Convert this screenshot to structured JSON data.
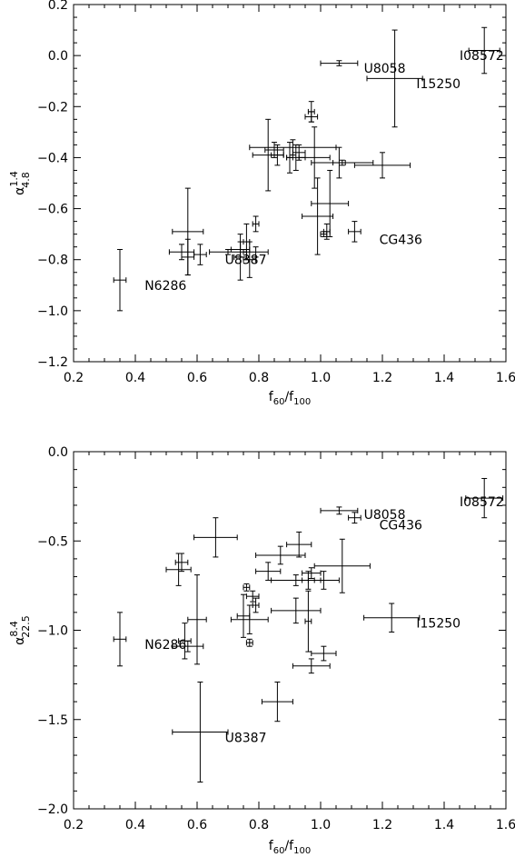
{
  "chart_data": [
    {
      "type": "scatter",
      "title": "",
      "xlabel": {
        "base": "f",
        "sub1": "60",
        "sep": "/f",
        "sub2": "100"
      },
      "ylabel": {
        "base": "α",
        "sup": "1.4",
        "sub": "4.8"
      },
      "xlim": [
        0.2,
        1.6
      ],
      "ylim": [
        -1.2,
        0.2
      ],
      "xticks": [
        "0.2",
        "0.4",
        "0.6",
        "0.8",
        "1.0",
        "1.2",
        "1.4",
        "1.6"
      ],
      "yticks": [
        "−1.2",
        "−1.0",
        "−0.8",
        "−0.6",
        "−0.4",
        "−0.2",
        "0.0",
        "0.2"
      ],
      "grid": false,
      "points": [
        {
          "x": 1.53,
          "y": 0.02,
          "xerr": 0.05,
          "yerr": 0.09
        },
        {
          "x": 1.06,
          "y": -0.03,
          "xerr": 0.06,
          "yerr": 0.01
        },
        {
          "x": 1.24,
          "y": -0.09,
          "xerr": 0.09,
          "yerr": 0.19
        },
        {
          "x": 0.97,
          "y": -0.24,
          "xerr": 0.02,
          "yerr": 0.02
        },
        {
          "x": 0.97,
          "y": -0.22,
          "xerr": 0.01,
          "yerr": 0.04
        },
        {
          "x": 0.91,
          "y": -0.36,
          "xerr": 0.14,
          "yerr": 0.03
        },
        {
          "x": 0.85,
          "y": -0.37,
          "xerr": 0.03,
          "yerr": 0.03
        },
        {
          "x": 0.83,
          "y": -0.39,
          "xerr": 0.05,
          "yerr": 0.14
        },
        {
          "x": 0.86,
          "y": -0.39,
          "xerr": 0.02,
          "yerr": 0.04
        },
        {
          "x": 0.92,
          "y": -0.4,
          "xerr": 0.03,
          "yerr": 0.05
        },
        {
          "x": 0.98,
          "y": -0.4,
          "xerr": 0.05,
          "yerr": 0.12
        },
        {
          "x": 1.06,
          "y": -0.42,
          "xerr": 0.02,
          "yerr": 0.06
        },
        {
          "x": 1.07,
          "y": -0.42,
          "xerr": 0.1,
          "yerr": 0.01
        },
        {
          "x": 1.2,
          "y": -0.43,
          "xerr": 0.09,
          "yerr": 0.05
        },
        {
          "x": 0.9,
          "y": -0.4,
          "xerr": 0.01,
          "yerr": 0.06
        },
        {
          "x": 0.93,
          "y": -0.38,
          "xerr": 0.02,
          "yerr": 0.03
        },
        {
          "x": 1.03,
          "y": -0.58,
          "xerr": 0.06,
          "yerr": 0.13
        },
        {
          "x": 0.99,
          "y": -0.63,
          "xerr": 0.05,
          "yerr": 0.15
        },
        {
          "x": 1.11,
          "y": -0.69,
          "xerr": 0.02,
          "yerr": 0.04
        },
        {
          "x": 1.02,
          "y": -0.69,
          "xerr": 0.01,
          "yerr": 0.03
        },
        {
          "x": 1.01,
          "y": -0.7,
          "xerr": 0.01,
          "yerr": 0.01
        },
        {
          "x": 0.57,
          "y": -0.69,
          "xerr": 0.05,
          "yerr": 0.17
        },
        {
          "x": 0.79,
          "y": -0.66,
          "xerr": 0.01,
          "yerr": 0.03
        },
        {
          "x": 0.76,
          "y": -0.73,
          "xerr": 0.01,
          "yerr": 0.07
        },
        {
          "x": 0.74,
          "y": -0.76,
          "xerr": 0.03,
          "yerr": 0.03
        },
        {
          "x": 0.79,
          "y": -0.77,
          "xerr": 0.04,
          "yerr": 0.02
        },
        {
          "x": 0.7,
          "y": -0.77,
          "xerr": 0.06,
          "yerr": 0.01
        },
        {
          "x": 0.55,
          "y": -0.77,
          "xerr": 0.04,
          "yerr": 0.03
        },
        {
          "x": 0.61,
          "y": -0.78,
          "xerr": 0.02,
          "yerr": 0.04
        },
        {
          "x": 0.57,
          "y": -0.79,
          "xerr": 0.02,
          "yerr": 0.07
        },
        {
          "x": 0.74,
          "y": -0.79,
          "xerr": 0.02,
          "yerr": 0.09
        },
        {
          "x": 0.77,
          "y": -0.8,
          "xerr": 0.02,
          "yerr": 0.07
        },
        {
          "x": 0.35,
          "y": -0.88,
          "xerr": 0.02,
          "yerr": 0.12
        }
      ],
      "annotations": [
        {
          "text": "I08572",
          "x": 1.45,
          "y": 0.0
        },
        {
          "text": "U8058",
          "x": 1.14,
          "y": -0.05
        },
        {
          "text": "I15250",
          "x": 1.31,
          "y": -0.11
        },
        {
          "text": "CG436",
          "x": 1.19,
          "y": -0.72
        },
        {
          "text": "U8387",
          "x": 0.69,
          "y": -0.8
        },
        {
          "text": "N6286",
          "x": 0.43,
          "y": -0.9
        }
      ]
    },
    {
      "type": "scatter",
      "title": "",
      "xlabel": {
        "base": "f",
        "sub1": "60",
        "sep": "/f",
        "sub2": "100"
      },
      "ylabel": {
        "base": "α",
        "sup": "8.4",
        "sub": "22.5"
      },
      "xlim": [
        0.2,
        1.6
      ],
      "ylim": [
        -2.0,
        0.0
      ],
      "xticks": [
        "0.2",
        "0.4",
        "0.6",
        "0.8",
        "1.0",
        "1.2",
        "1.4",
        "1.6"
      ],
      "yticks": [
        "−2.0",
        "−1.5",
        "−1.0",
        "−0.5",
        "0.0"
      ],
      "grid": false,
      "points": [
        {
          "x": 1.53,
          "y": -0.26,
          "xerr": 0.06,
          "yerr": 0.11
        },
        {
          "x": 1.06,
          "y": -0.33,
          "xerr": 0.06,
          "yerr": 0.02
        },
        {
          "x": 1.11,
          "y": -0.37,
          "xerr": 0.02,
          "yerr": 0.03
        },
        {
          "x": 0.66,
          "y": -0.48,
          "xerr": 0.07,
          "yerr": 0.11
        },
        {
          "x": 0.93,
          "y": -0.52,
          "xerr": 0.04,
          "yerr": 0.07
        },
        {
          "x": 0.87,
          "y": -0.58,
          "xerr": 0.08,
          "yerr": 0.05
        },
        {
          "x": 0.55,
          "y": -0.62,
          "xerr": 0.02,
          "yerr": 0.05
        },
        {
          "x": 1.07,
          "y": -0.64,
          "xerr": 0.09,
          "yerr": 0.15
        },
        {
          "x": 0.54,
          "y": -0.66,
          "xerr": 0.04,
          "yerr": 0.09
        },
        {
          "x": 0.83,
          "y": -0.67,
          "xerr": 0.04,
          "yerr": 0.05
        },
        {
          "x": 0.97,
          "y": -0.68,
          "xerr": 0.03,
          "yerr": 0.03
        },
        {
          "x": 0.96,
          "y": -0.72,
          "xerr": 0.02,
          "yerr": 0.05
        },
        {
          "x": 0.92,
          "y": -0.72,
          "xerr": 0.08,
          "yerr": 0.03
        },
        {
          "x": 1.01,
          "y": -0.72,
          "xerr": 0.05,
          "yerr": 0.05
        },
        {
          "x": 0.76,
          "y": -0.76,
          "xerr": 0.01,
          "yerr": 0.02
        },
        {
          "x": 0.78,
          "y": -0.81,
          "xerr": 0.02,
          "yerr": 0.03
        },
        {
          "x": 0.79,
          "y": -0.86,
          "xerr": 0.01,
          "yerr": 0.04
        },
        {
          "x": 0.92,
          "y": -0.89,
          "xerr": 0.08,
          "yerr": 0.07
        },
        {
          "x": 0.75,
          "y": -0.92,
          "xerr": 0.02,
          "yerr": 0.12
        },
        {
          "x": 0.6,
          "y": -0.94,
          "xerr": 0.03,
          "yerr": 0.25
        },
        {
          "x": 0.77,
          "y": -0.94,
          "xerr": 0.06,
          "yerr": 0.08
        },
        {
          "x": 0.96,
          "y": -0.95,
          "xerr": 0.01,
          "yerr": 0.17
        },
        {
          "x": 1.23,
          "y": -0.93,
          "xerr": 0.09,
          "yerr": 0.08
        },
        {
          "x": 0.35,
          "y": -1.05,
          "xerr": 0.02,
          "yerr": 0.15
        },
        {
          "x": 0.56,
          "y": -1.06,
          "xerr": 0.02,
          "yerr": 0.1
        },
        {
          "x": 0.57,
          "y": -1.09,
          "xerr": 0.05,
          "yerr": 0.03
        },
        {
          "x": 0.77,
          "y": -1.07,
          "xerr": 0.01,
          "yerr": 0.02
        },
        {
          "x": 1.01,
          "y": -1.13,
          "xerr": 0.04,
          "yerr": 0.04
        },
        {
          "x": 0.97,
          "y": -1.2,
          "xerr": 0.06,
          "yerr": 0.04
        },
        {
          "x": 0.86,
          "y": -1.4,
          "xerr": 0.05,
          "yerr": 0.11
        },
        {
          "x": 0.61,
          "y": -1.57,
          "xerr": 0.09,
          "yerr": 0.28
        }
      ],
      "annotations": [
        {
          "text": "I08572",
          "x": 1.45,
          "y": -0.28
        },
        {
          "text": "U8058",
          "x": 1.14,
          "y": -0.35
        },
        {
          "text": "CG436",
          "x": 1.19,
          "y": -0.41
        },
        {
          "text": "I15250",
          "x": 1.31,
          "y": -0.96
        },
        {
          "text": "N6286",
          "x": 0.43,
          "y": -1.08
        },
        {
          "text": "U8387",
          "x": 0.69,
          "y": -1.6
        }
      ]
    }
  ]
}
